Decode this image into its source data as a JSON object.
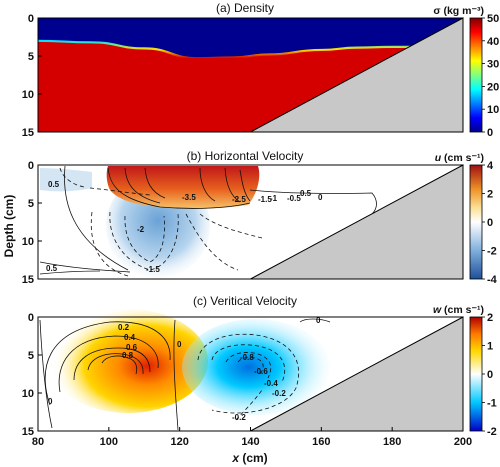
{
  "figure": {
    "ylabel": "Depth (cm)",
    "xlabel_symbol": "x",
    "xlabel_unit": " (cm)"
  },
  "chart_data": [
    {
      "type": "heatmap",
      "title": "(a) Density",
      "colorbar_label": "σ (kg m⁻³)",
      "colorbar_ticks": [
        0,
        10,
        20,
        30,
        40,
        50
      ],
      "clim": [
        0,
        50
      ],
      "x_ticks": [],
      "y_ticks": [
        0,
        5,
        10,
        15
      ],
      "xlim": [
        80,
        200
      ],
      "ylim": [
        15,
        0
      ],
      "upper_layer_density": 0,
      "lower_layer_density": 50,
      "interface": {
        "x": [
          80,
          95,
          110,
          125,
          135,
          145,
          160,
          170,
          180,
          190,
          200
        ],
        "depth": [
          3.0,
          3.2,
          4.0,
          5.3,
          5.2,
          4.8,
          4.2,
          3.9,
          3.8,
          3.8,
          3.8
        ]
      },
      "slope": {
        "x0": 140,
        "depth0": 15,
        "x1": 200,
        "depth1": 0
      }
    },
    {
      "type": "heatmap",
      "title": "(b) Horizontal Velocity",
      "colorbar_label_symbol": "u",
      "colorbar_label_unit": " (cm s⁻¹)",
      "colorbar_ticks": [
        -4,
        -2,
        0,
        2,
        4
      ],
      "clim": [
        -4,
        4
      ],
      "x_ticks": [],
      "y_ticks": [
        0,
        5,
        10,
        15
      ],
      "xlim": [
        80,
        200
      ],
      "ylim": [
        15,
        0
      ],
      "contour_labels": [
        "-3.5",
        "-2.5",
        "-1.5",
        "-1",
        "-0.5",
        "0",
        "0.5",
        "-1.5",
        "-2",
        "0.5",
        "0.5"
      ],
      "slope": {
        "x0": 140,
        "depth0": 15,
        "x1": 200,
        "depth1": 0
      }
    },
    {
      "type": "heatmap",
      "title": "(c) Veritical Velocity",
      "colorbar_label_symbol": "w",
      "colorbar_label_unit": " (cm s⁻¹)",
      "colorbar_ticks": [
        -2,
        -1,
        0,
        1,
        2
      ],
      "clim": [
        -2,
        2
      ],
      "x_ticks": [
        80,
        100,
        120,
        140,
        160,
        180,
        200
      ],
      "y_ticks": [
        0,
        5,
        10,
        15
      ],
      "xlim": [
        80,
        200
      ],
      "ylim": [
        15,
        0
      ],
      "contour_labels": [
        "0.2",
        "0.4",
        "0.6",
        "0.8",
        "0",
        "0",
        "-0.2",
        "-0.4",
        "-0.6",
        "-0.8",
        "0",
        "-0.2"
      ],
      "slope": {
        "x0": 140,
        "depth0": 15,
        "x1": 200,
        "depth1": 0
      }
    }
  ]
}
